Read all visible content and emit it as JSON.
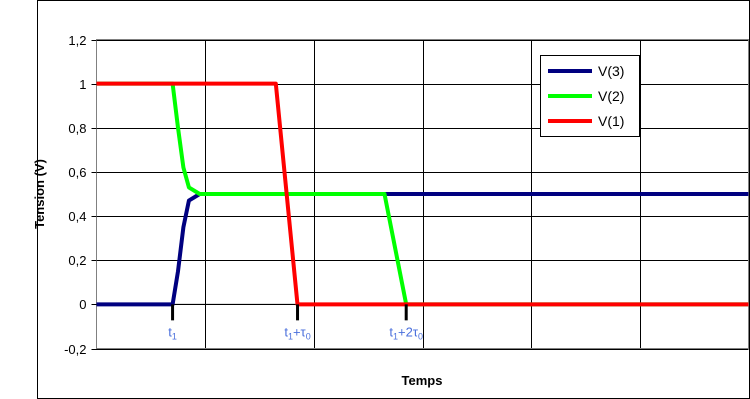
{
  "chart_data": {
    "type": "line",
    "title": "",
    "xlabel": "Temps",
    "ylabel": "Tension (V)",
    "ylim": [
      -0.2,
      1.2
    ],
    "xlim": [
      0,
      6
    ],
    "yticks": [
      "-0,2",
      "0",
      "0,2",
      "0,4",
      "0,6",
      "0,8",
      "1",
      "1,2"
    ],
    "grid": true,
    "legend_position": "top-right",
    "markers": [
      {
        "x": 0.7,
        "label": "t",
        "sub": "1",
        "suffix": "",
        "suffix_sub": ""
      },
      {
        "x": 1.85,
        "label": "t",
        "sub": "1",
        "suffix": "+τ",
        "suffix_sub": "0"
      },
      {
        "x": 2.85,
        "label": "t",
        "sub": "1",
        "suffix": "+2τ",
        "suffix_sub": "0"
      }
    ],
    "series": [
      {
        "name": "V(3)",
        "color": "#000080",
        "x": [
          0,
          0.7,
          0.75,
          0.8,
          0.85,
          0.95,
          6
        ],
        "y": [
          0,
          0,
          0.15,
          0.35,
          0.47,
          0.5,
          0.5
        ]
      },
      {
        "name": "V(2)",
        "color": "#00ff00",
        "x": [
          0,
          0.7,
          0.75,
          0.8,
          0.85,
          0.95,
          2.65,
          2.85,
          6
        ],
        "y": [
          1,
          1,
          0.8,
          0.62,
          0.53,
          0.5,
          0.5,
          0,
          0
        ]
      },
      {
        "name": "V(1)",
        "color": "#ff0000",
        "x": [
          0,
          1.65,
          1.85,
          1.95,
          6
        ],
        "y": [
          1,
          1,
          0,
          0,
          0
        ]
      }
    ]
  }
}
